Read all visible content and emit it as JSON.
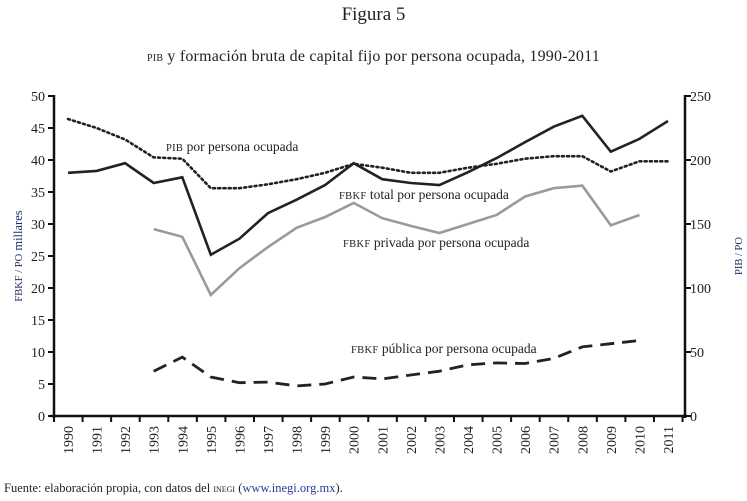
{
  "figure": {
    "number": "Figura 5",
    "title_sc": "PIB",
    "title_rest": " y formación bruta de capital fijo por persona ocupada, 1990-2011"
  },
  "source": {
    "prefix": "Fuente: elaboración propia, con datos del ",
    "org_sc": "INEGI",
    "open": " (",
    "url": "www.inegi.org.mx",
    "close": ")."
  },
  "chart_data": {
    "type": "line",
    "title": "PIB y formación bruta de capital fijo por persona ocupada, 1990-2011",
    "x": [
      "1990",
      "1991",
      "1992",
      "1993",
      "1994",
      "1995",
      "1996",
      "1997",
      "1998",
      "1999",
      "2000",
      "2001",
      "2002",
      "2003",
      "2004",
      "2005",
      "2006",
      "2007",
      "2008",
      "2009",
      "2010",
      "2011"
    ],
    "y_left": {
      "label": "FBKF / PO millares",
      "label_sc": "FBKF / PO",
      "label_rest": " millares",
      "ylim": [
        0,
        50
      ],
      "ticks": [
        "0",
        "5",
        "10",
        "15",
        "20",
        "25",
        "30",
        "35",
        "40",
        "45",
        "50"
      ]
    },
    "y_right": {
      "label": "PIB / PO",
      "ylim": [
        0,
        250
      ],
      "ticks": [
        "0",
        "50",
        "100",
        "150",
        "200",
        "250"
      ]
    },
    "grid": false,
    "series": [
      {
        "name": "PIB por persona ocupada",
        "label_sc": "PIB",
        "label_rest": " por persona ocupada",
        "axis": "right",
        "style": "dotted",
        "color": "#222222",
        "values": [
          232,
          225,
          216,
          202,
          201,
          178,
          178,
          181,
          185,
          190,
          197,
          194,
          190,
          190,
          194,
          197,
          201,
          203,
          203,
          191,
          199,
          199
        ]
      },
      {
        "name": "FBKF total por persona ocupada",
        "label_sc": "FBKF",
        "label_rest": " total por persona ocupada",
        "axis": "left",
        "style": "solid",
        "color": "#222222",
        "values": [
          38.0,
          38.3,
          39.5,
          36.4,
          37.3,
          25.2,
          27.7,
          31.7,
          33.8,
          36.1,
          39.5,
          37.0,
          36.4,
          36.1,
          38.1,
          40.3,
          42.8,
          45.2,
          46.9,
          41.3,
          43.3,
          46.1
        ]
      },
      {
        "name": "FBKF privada por persona ocupada",
        "label_sc": "FBKF",
        "label_rest": " privada por persona ocupada",
        "axis": "left",
        "style": "solid",
        "color": "#9a9a9a",
        "values": [
          null,
          null,
          null,
          29.2,
          28.0,
          18.9,
          23.1,
          26.4,
          29.4,
          31.1,
          33.3,
          30.9,
          29.7,
          28.6,
          30.0,
          31.4,
          34.3,
          35.6,
          36.0,
          29.8,
          31.4,
          null
        ]
      },
      {
        "name": "FBKF pública por persona ocupada",
        "label_sc": "FBKF",
        "label_rest": " pública por persona ocupada",
        "axis": "left",
        "style": "dashed",
        "color": "#222222",
        "values": [
          null,
          null,
          null,
          7.0,
          9.2,
          6.1,
          5.2,
          5.3,
          4.7,
          5.0,
          6.1,
          5.8,
          6.4,
          7.0,
          8.0,
          8.3,
          8.2,
          9.0,
          10.8,
          11.3,
          11.8,
          null
        ]
      }
    ]
  }
}
